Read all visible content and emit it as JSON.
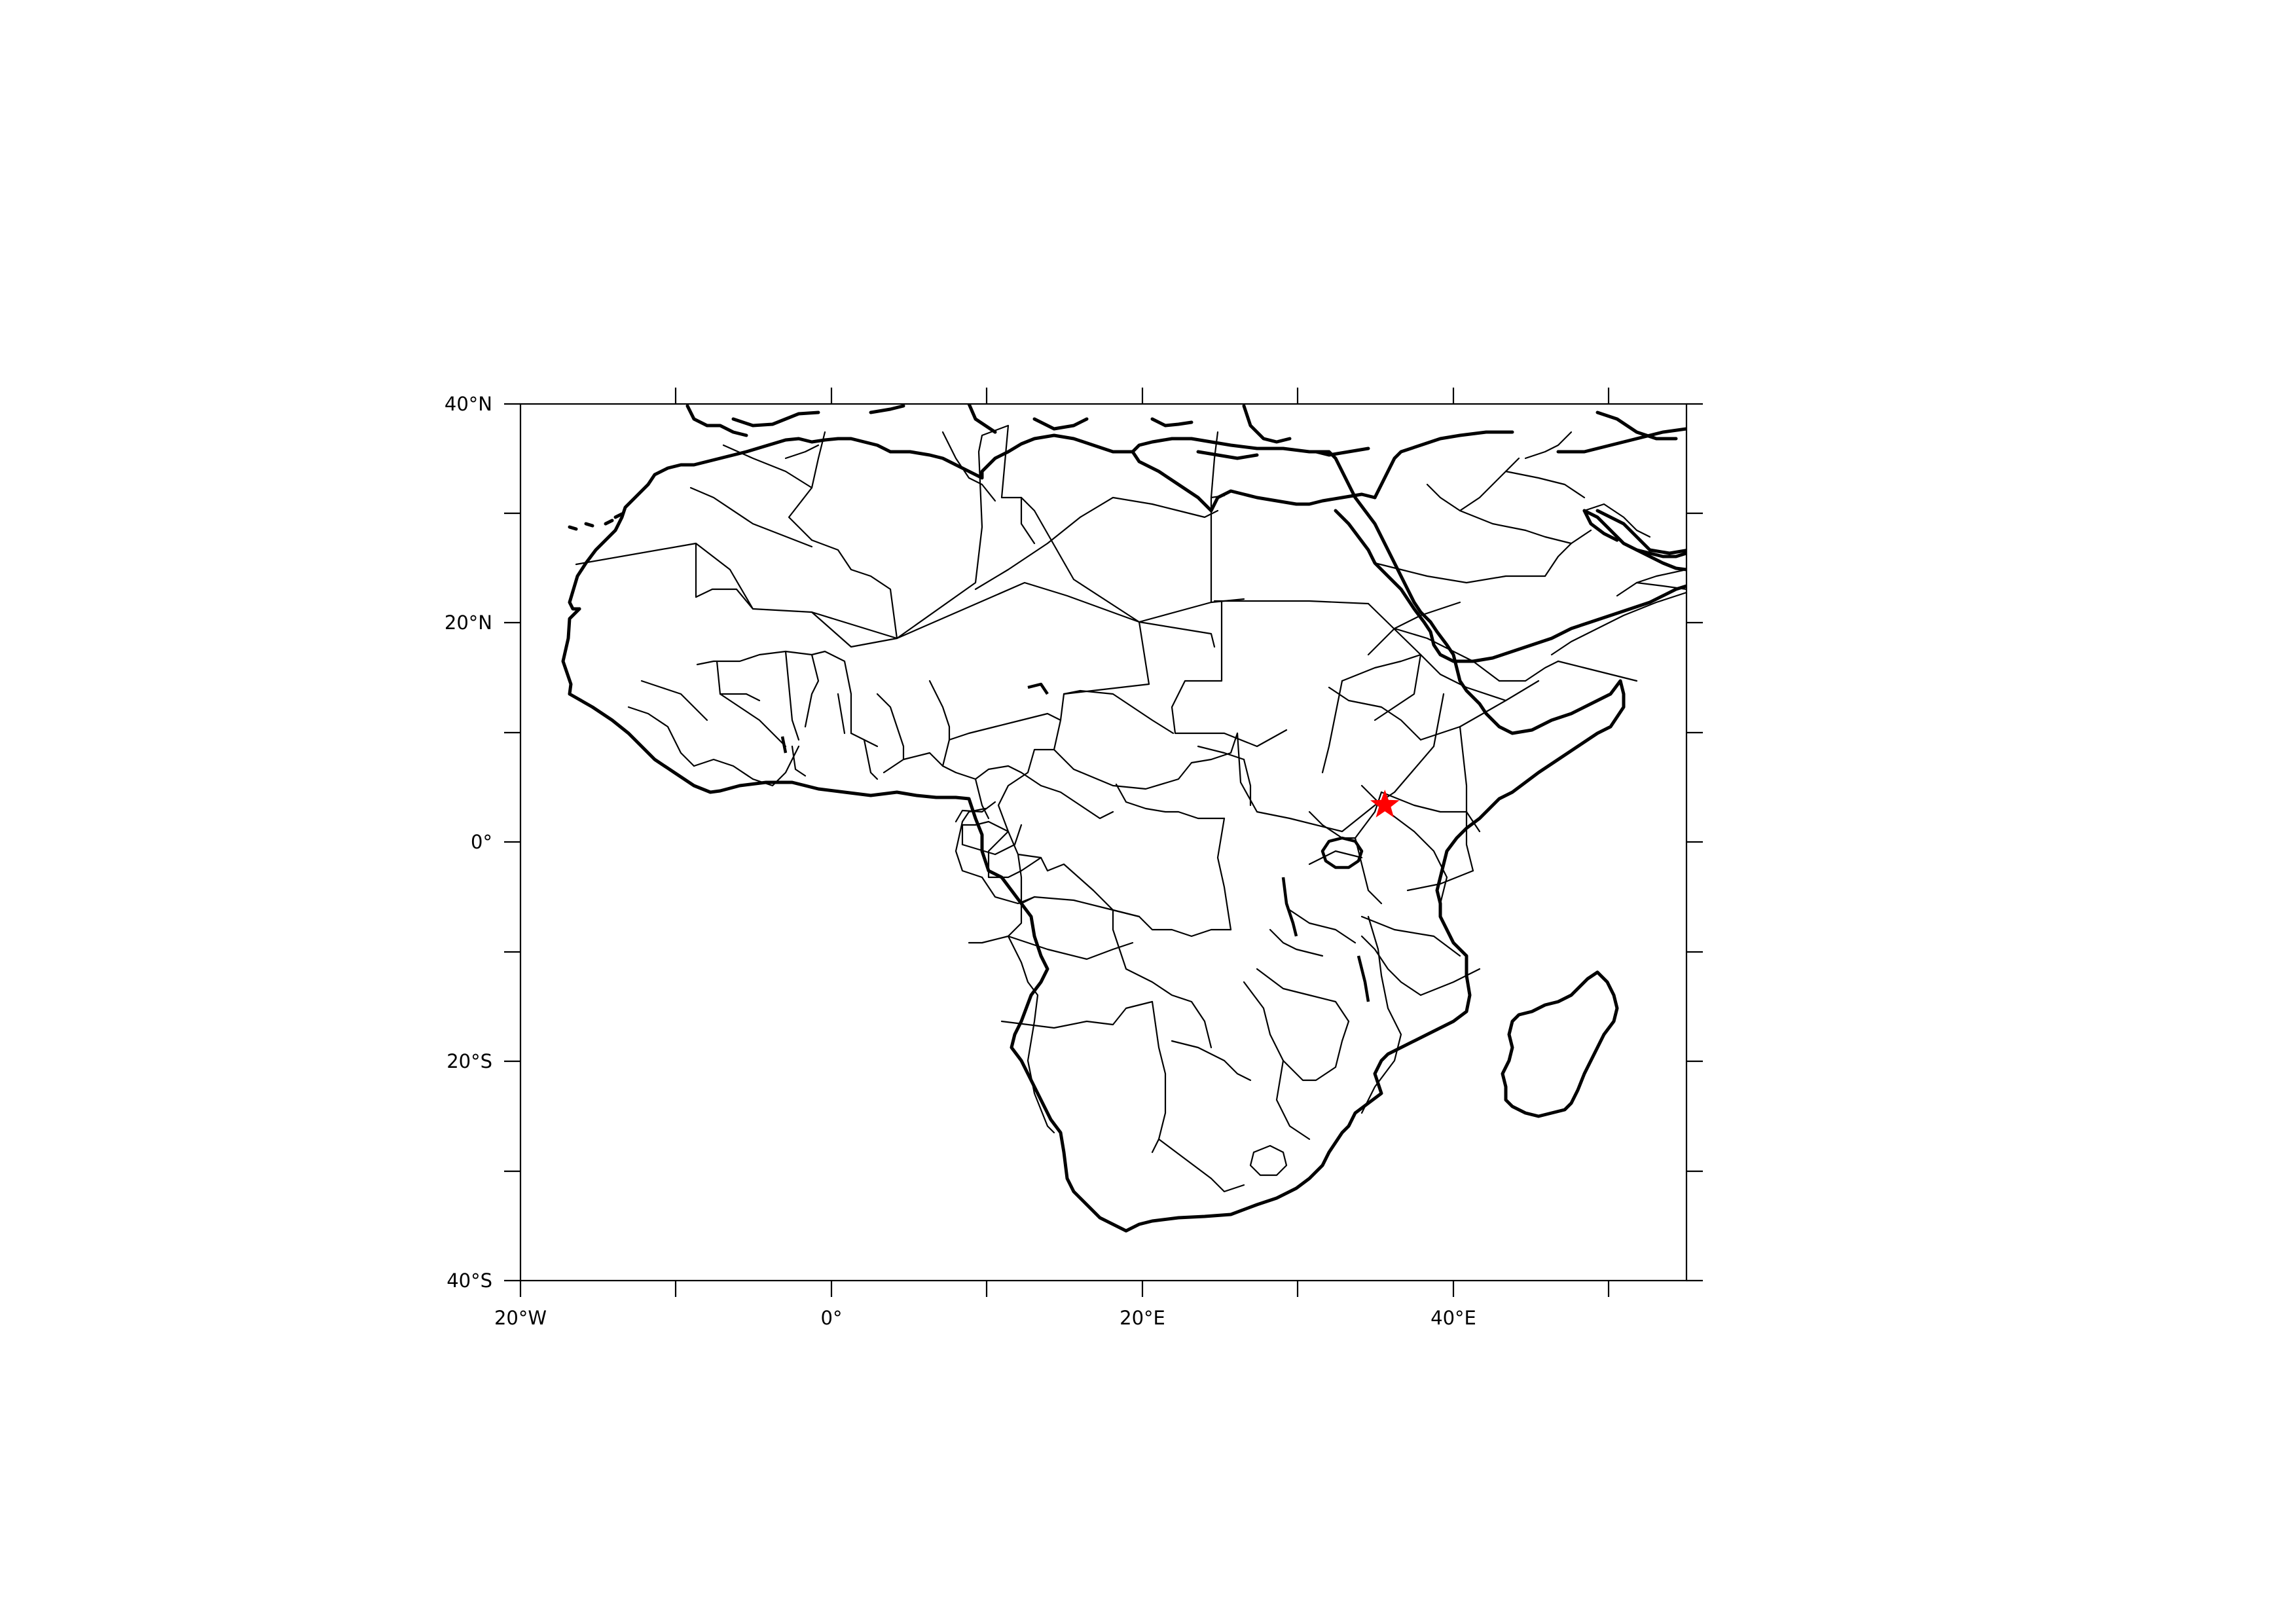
{
  "map": {
    "region": "Africa",
    "projection": "cylindrical equidistant",
    "lon_range": [
      -20,
      55
    ],
    "lat_range": [
      -40,
      40
    ],
    "x_tick_labels": [
      "20°W",
      "0°",
      "20°E",
      "40°E"
    ],
    "y_tick_labels": [
      "40°N",
      "20°N",
      "0°",
      "20°S",
      "40°S"
    ],
    "marker": {
      "symbol": "star",
      "color": "#ff0000",
      "lon": 35.6,
      "lat": 3.4
    },
    "coastline_color": "#000000",
    "border_color": "#000000"
  }
}
